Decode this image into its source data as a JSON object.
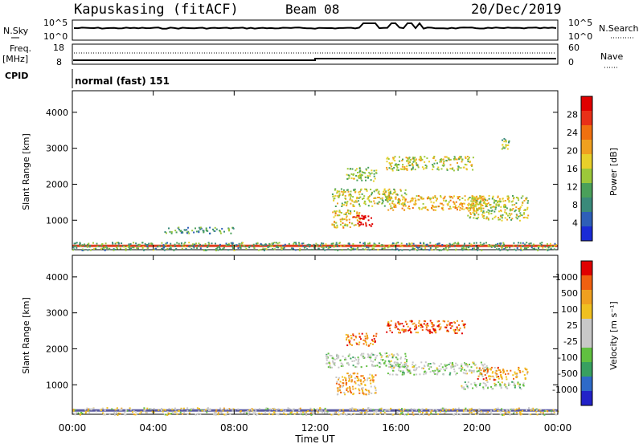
{
  "header": {
    "station": "Kapuskasing (fitACF)",
    "beam": "Beam 08",
    "date": "20/Dec/2019"
  },
  "panels": {
    "nsky_label": "N.Sky",
    "nsky_top_tick": "10^5",
    "nsky_bottom_tick": "10^0",
    "nsearch_label": "N.Search",
    "nsearch_top_tick": "10^5",
    "nsearch_bottom_tick": "10^0",
    "freq_label": "Freq.",
    "freq_unit": "[MHz]",
    "freq_top_tick": "18",
    "freq_bottom_tick": "8",
    "nave_label": "Nave",
    "nave_top_tick": "60",
    "nave_bottom_tick": "0",
    "cpid_label": "CPID",
    "cpid_value": "normal (fast) 151"
  },
  "colors": {
    "power_scale": [
      "#1a2bd6",
      "#2e5fb8",
      "#3a8a7a",
      "#4aa05a",
      "#9cc83a",
      "#e8d02a",
      "#f0a020",
      "#f07010",
      "#e83018",
      "#e00000"
    ],
    "velocity_scale": [
      "#2222c8",
      "#2e6ac8",
      "#38a060",
      "#60c040",
      "#c8c8c8",
      "#c8c8c8",
      "#f0c020",
      "#f0a020",
      "#f06010",
      "#e00000"
    ]
  },
  "chart_data": [
    {
      "type": "heatmap",
      "name": "power",
      "xlabel": "",
      "ylabel": "Slant Range [km]",
      "x_ticks": [
        "00:00",
        "04:00",
        "08:00",
        "12:00",
        "16:00",
        "20:00",
        "00:00"
      ],
      "y_ticks": [
        "1000",
        "2000",
        "3000",
        "4000"
      ],
      "xlim": [
        0,
        24
      ],
      "ylim": [
        180,
        4600
      ],
      "colorbar_label": "Power [dB]",
      "colorbar_ticks": [
        "4",
        "8",
        "12",
        "16",
        "20",
        "24",
        "28"
      ],
      "echo_regions": [
        {
          "t0": 0,
          "t1": 24,
          "r0": 180,
          "r1": 400,
          "level": 0.35
        },
        {
          "t0": 4.5,
          "t1": 8,
          "r0": 650,
          "r1": 820,
          "level": 0.3
        },
        {
          "t0": 12.8,
          "t1": 14.2,
          "r0": 800,
          "r1": 1300,
          "level": 0.55
        },
        {
          "t0": 13.8,
          "t1": 14.8,
          "r0": 850,
          "r1": 1150,
          "level": 0.95
        },
        {
          "t0": 12.8,
          "t1": 16.5,
          "r0": 1400,
          "r1": 1900,
          "level": 0.5
        },
        {
          "t0": 15.5,
          "t1": 20.5,
          "r0": 1300,
          "r1": 1700,
          "level": 0.62
        },
        {
          "t0": 19.5,
          "t1": 22.5,
          "r0": 1000,
          "r1": 1700,
          "level": 0.5
        },
        {
          "t0": 15.5,
          "t1": 19.8,
          "r0": 2400,
          "r1": 2800,
          "level": 0.5
        },
        {
          "t0": 13.5,
          "t1": 15.0,
          "r0": 2100,
          "r1": 2500,
          "level": 0.45
        },
        {
          "t0": 21.2,
          "t1": 21.6,
          "r0": 3000,
          "r1": 3300,
          "level": 0.4
        }
      ]
    },
    {
      "type": "heatmap",
      "name": "velocity",
      "xlabel": "Time UT",
      "ylabel": "Slant Range [km]",
      "x_ticks": [
        "00:00",
        "04:00",
        "08:00",
        "12:00",
        "16:00",
        "20:00",
        "00:00"
      ],
      "y_ticks": [
        "1000",
        "2000",
        "3000",
        "4000"
      ],
      "xlim": [
        0,
        24
      ],
      "ylim": [
        180,
        4600
      ],
      "colorbar_label": "Velocity [m s⁻¹]",
      "colorbar_ticks": [
        "1000",
        "500",
        "100",
        "25",
        "-25",
        "-100",
        "-500",
        "-1000"
      ],
      "echo_regions": [
        {
          "t0": 0,
          "t1": 24,
          "r0": 180,
          "r1": 380,
          "level": 0.55
        },
        {
          "t0": 12.5,
          "t1": 16.5,
          "r0": 1500,
          "r1": 1900,
          "level": 0.45
        },
        {
          "t0": 15.5,
          "t1": 20.5,
          "r0": 1300,
          "r1": 1650,
          "level": 0.45
        },
        {
          "t0": 13.0,
          "t1": 15.0,
          "r0": 750,
          "r1": 1350,
          "level": 0.7
        },
        {
          "t0": 20.0,
          "t1": 22.5,
          "r0": 1150,
          "r1": 1500,
          "level": 0.75
        },
        {
          "t0": 15.5,
          "t1": 19.5,
          "r0": 2450,
          "r1": 2800,
          "level": 0.85
        },
        {
          "t0": 13.5,
          "t1": 15.0,
          "r0": 2100,
          "r1": 2450,
          "level": 0.8
        },
        {
          "t0": 19.2,
          "t1": 22.3,
          "r0": 900,
          "r1": 1100,
          "level": 0.45
        }
      ]
    }
  ]
}
